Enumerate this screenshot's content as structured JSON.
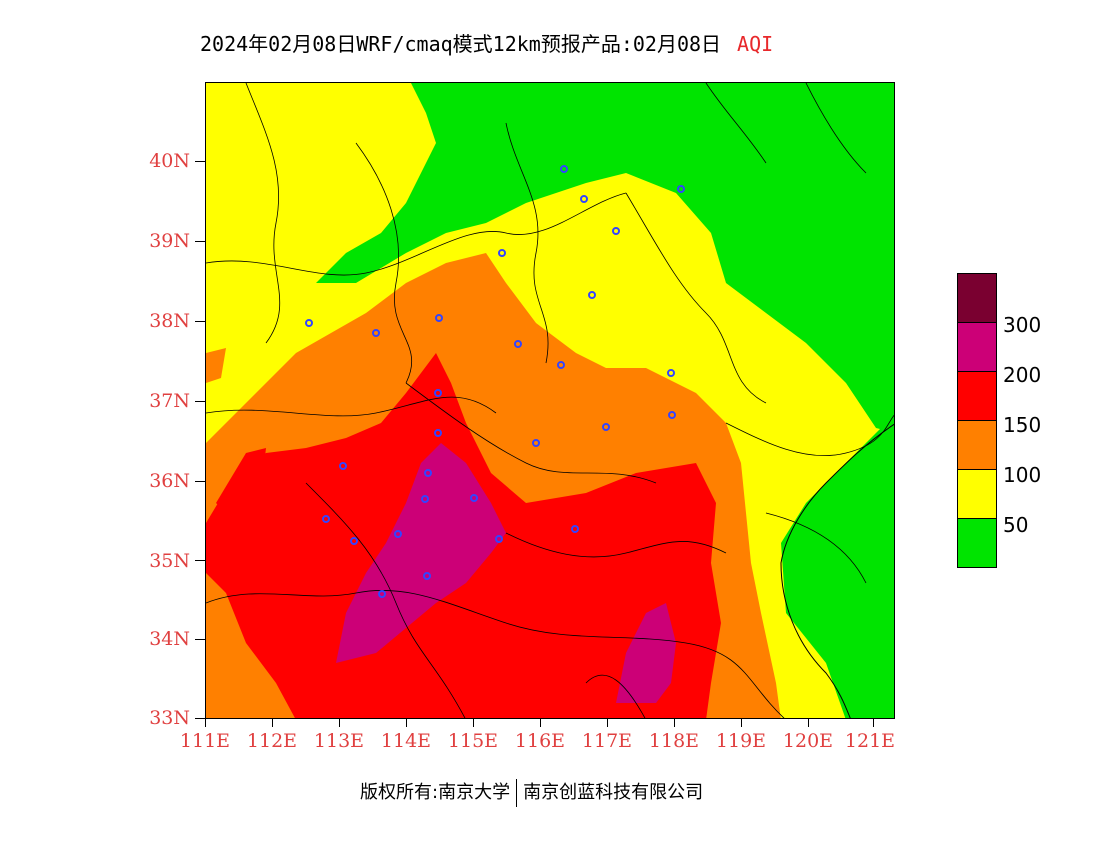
{
  "title": {
    "text": "2024年02月08日WRF/cmaq模式12km预报产品:02月08日",
    "product": "AQI"
  },
  "axes": {
    "lat_labels": [
      "40N",
      "39N",
      "38N",
      "37N",
      "36N",
      "35N",
      "34N",
      "33N"
    ],
    "lon_labels": [
      "111E",
      "112E",
      "113E",
      "114E",
      "115E",
      "116E",
      "117E",
      "118E",
      "119E",
      "120E",
      "121E"
    ],
    "lat_range": [
      33,
      41
    ],
    "lon_range": [
      111,
      121.3
    ]
  },
  "legend": {
    "labels": [
      "300",
      "200",
      "150",
      "100",
      "50"
    ],
    "colors": {
      "above_300": "#7a0030",
      "200_300": "#cc0077",
      "150_200": "#ff0000",
      "100_150": "#ff8000",
      "50_100": "#ffff00",
      "0_50": "#00e400"
    }
  },
  "footer": {
    "left": "版权所有:南京大学",
    "right": "南京创蓝科技有限公司"
  }
}
